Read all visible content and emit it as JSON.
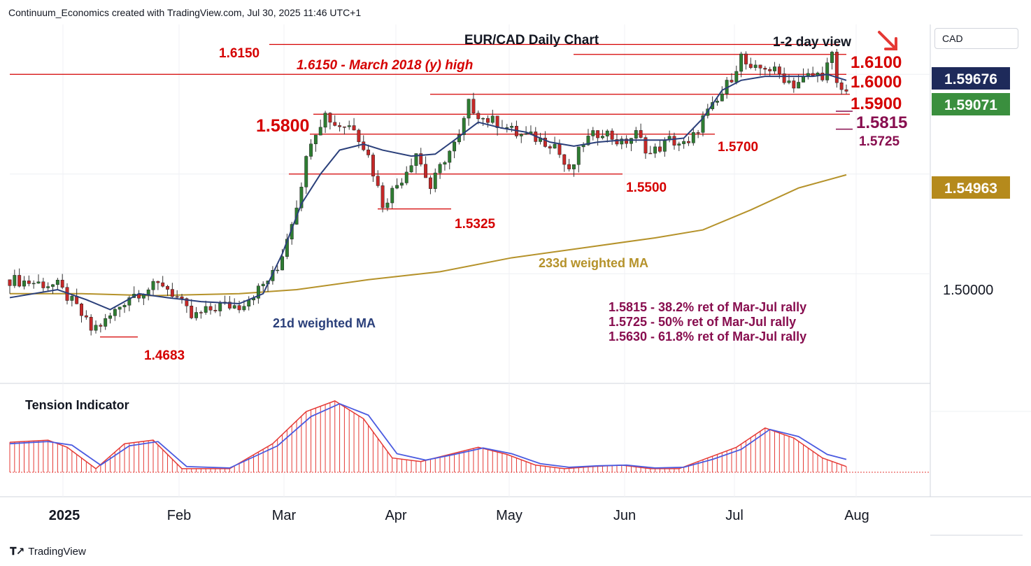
{
  "header": {
    "attribution": "Continuum_Economics created with TradingView.com, Jul 30, 2025 11:46 UTC+1",
    "currency": "CAD",
    "brand": "TradingView"
  },
  "colors": {
    "up": "#2e7d32",
    "down": "#c62828",
    "ma21": "#2a3f7a",
    "ma233": "#b5922a",
    "level": "#d50000",
    "retrace": "#880e4f",
    "tension_hist": "#e53935",
    "tension_line": "#4a5ae0",
    "tension_red": "#e53935"
  },
  "chart_data": {
    "type": "candlestick",
    "title": "EUR/CAD Daily Chart",
    "subtitle": "1-2 day view",
    "x_ticks": [
      "2025",
      "Feb",
      "Mar",
      "Apr",
      "May",
      "Jun",
      "Jul",
      "Aug"
    ],
    "y_ticks": [
      "1.50000"
    ],
    "ylim": [
      1.445,
      1.625
    ],
    "price_tags": [
      {
        "label": "1.59676",
        "value": 1.59676,
        "style": "navy"
      },
      {
        "label": "1.59071",
        "value": 1.59071,
        "style": "green"
      },
      {
        "label": "1.54963",
        "value": 1.54963,
        "style": "gold"
      }
    ],
    "levels": [
      {
        "label": "1.6150",
        "value": 1.615,
        "label_side": "left",
        "big": false
      },
      {
        "label": "1.6100",
        "value": 1.61,
        "label_side": "right",
        "big": true
      },
      {
        "label": "1.6000",
        "value": 1.6,
        "label_side": "right",
        "big": true
      },
      {
        "label": "1.5900",
        "value": 1.59,
        "label_side": "right",
        "big": true
      },
      {
        "label": "1.5800",
        "value": 1.58,
        "label_side": "left",
        "big": true
      },
      {
        "label": "1.5700",
        "value": 1.57,
        "label_side": "right",
        "big": false
      },
      {
        "label": "1.5500",
        "value": 1.55,
        "label_side": "right",
        "big": false
      },
      {
        "label": "1.5325",
        "value": 1.5325,
        "label_side": "right",
        "big": false
      },
      {
        "label": "1.4683",
        "value": 1.4683,
        "label_side": "right",
        "big": false
      }
    ],
    "retrace_marks": [
      {
        "label": "1.5815",
        "value": 1.5815,
        "big": true
      },
      {
        "label": "1.5725",
        "value": 1.5725,
        "big": false
      }
    ],
    "annotations": {
      "march_high": "1.6150 - March 2018 (y) high",
      "ma233_label": "233d weighted MA",
      "ma21_label": "21d weighted MA",
      "retracements": [
        "1.5815 - 38.2% ret of Mar-Jul rally",
        "1.5725 - 50% ret of Mar-Jul rally",
        "1.5630 - 61.8% ret of Mar-Jul rally"
      ],
      "tension_label": "Tension Indicator"
    },
    "close_path": [
      [
        0,
        1.497
      ],
      [
        10,
        1.494
      ],
      [
        14,
        1.483
      ],
      [
        17,
        1.472
      ],
      [
        20,
        1.476
      ],
      [
        25,
        1.489
      ],
      [
        32,
        1.495
      ],
      [
        35,
        1.488
      ],
      [
        38,
        1.478
      ],
      [
        44,
        1.484
      ],
      [
        48,
        1.484
      ],
      [
        52,
        1.492
      ],
      [
        56,
        1.502
      ],
      [
        60,
        1.535
      ],
      [
        63,
        1.568
      ],
      [
        66,
        1.58
      ],
      [
        68,
        1.575
      ],
      [
        72,
        1.574
      ],
      [
        75,
        1.559
      ],
      [
        78,
        1.535
      ],
      [
        82,
        1.548
      ],
      [
        85,
        1.561
      ],
      [
        88,
        1.543
      ],
      [
        91,
        1.558
      ],
      [
        94,
        1.568
      ],
      [
        96,
        1.585
      ],
      [
        99,
        1.578
      ],
      [
        103,
        1.575
      ],
      [
        106,
        1.57
      ],
      [
        110,
        1.568
      ],
      [
        114,
        1.565
      ],
      [
        117,
        1.55
      ],
      [
        120,
        1.566
      ],
      [
        124,
        1.572
      ],
      [
        128,
        1.565
      ],
      [
        131,
        1.57
      ],
      [
        134,
        1.56
      ],
      [
        138,
        1.567
      ],
      [
        142,
        1.564
      ],
      [
        145,
        1.578
      ],
      [
        148,
        1.586
      ],
      [
        151,
        1.599
      ],
      [
        153,
        1.609
      ],
      [
        155,
        1.601
      ],
      [
        158,
        1.604
      ],
      [
        161,
        1.6
      ],
      [
        164,
        1.595
      ],
      [
        167,
        1.599
      ],
      [
        170,
        1.6
      ],
      [
        172,
        1.609
      ],
      [
        173,
        1.594
      ],
      [
        175,
        1.5907
      ]
    ],
    "ma21": [
      [
        0,
        1.488
      ],
      [
        10,
        1.492
      ],
      [
        16,
        1.487
      ],
      [
        21,
        1.482
      ],
      [
        27,
        1.49
      ],
      [
        33,
        1.488
      ],
      [
        40,
        1.486
      ],
      [
        48,
        1.485
      ],
      [
        53,
        1.49
      ],
      [
        57,
        1.51
      ],
      [
        61,
        1.535
      ],
      [
        65,
        1.55
      ],
      [
        69,
        1.562
      ],
      [
        74,
        1.565
      ],
      [
        78,
        1.562
      ],
      [
        84,
        1.559
      ],
      [
        89,
        1.56
      ],
      [
        93,
        1.567
      ],
      [
        98,
        1.576
      ],
      [
        103,
        1.573
      ],
      [
        108,
        1.571
      ],
      [
        113,
        1.566
      ],
      [
        118,
        1.564
      ],
      [
        123,
        1.566
      ],
      [
        128,
        1.567
      ],
      [
        133,
        1.567
      ],
      [
        137,
        1.567
      ],
      [
        141,
        1.568
      ],
      [
        145,
        1.578
      ],
      [
        149,
        1.592
      ],
      [
        153,
        1.597
      ],
      [
        158,
        1.599
      ],
      [
        163,
        1.599
      ],
      [
        168,
        1.599
      ],
      [
        171,
        1.6
      ],
      [
        175,
        1.597
      ]
    ],
    "ma233": [
      [
        0,
        1.49
      ],
      [
        15,
        1.49
      ],
      [
        30,
        1.489
      ],
      [
        48,
        1.49
      ],
      [
        60,
        1.492
      ],
      [
        75,
        1.497
      ],
      [
        90,
        1.501
      ],
      [
        105,
        1.508
      ],
      [
        120,
        1.513
      ],
      [
        135,
        1.518
      ],
      [
        145,
        1.522
      ],
      [
        155,
        1.532
      ],
      [
        165,
        1.543
      ],
      [
        175,
        1.5496
      ]
    ],
    "tension": [
      [
        0,
        0.42
      ],
      [
        8,
        0.45
      ],
      [
        12,
        0.35
      ],
      [
        18,
        0.05
      ],
      [
        24,
        0.4
      ],
      [
        30,
        0.45
      ],
      [
        36,
        0.05
      ],
      [
        46,
        0.05
      ],
      [
        55,
        0.4
      ],
      [
        62,
        0.85
      ],
      [
        68,
        1.0
      ],
      [
        74,
        0.75
      ],
      [
        80,
        0.2
      ],
      [
        86,
        0.15
      ],
      [
        92,
        0.25
      ],
      [
        98,
        0.35
      ],
      [
        104,
        0.25
      ],
      [
        110,
        0.1
      ],
      [
        116,
        0.05
      ],
      [
        122,
        0.08
      ],
      [
        128,
        0.1
      ],
      [
        134,
        0.05
      ],
      [
        140,
        0.05
      ],
      [
        146,
        0.2
      ],
      [
        152,
        0.35
      ],
      [
        158,
        0.62
      ],
      [
        164,
        0.48
      ],
      [
        170,
        0.2
      ],
      [
        175,
        0.08
      ]
    ],
    "tension_line": [
      [
        0,
        0.4
      ],
      [
        8,
        0.43
      ],
      [
        13,
        0.38
      ],
      [
        19,
        0.1
      ],
      [
        25,
        0.37
      ],
      [
        31,
        0.43
      ],
      [
        37,
        0.08
      ],
      [
        46,
        0.06
      ],
      [
        56,
        0.37
      ],
      [
        63,
        0.78
      ],
      [
        69,
        0.96
      ],
      [
        75,
        0.8
      ],
      [
        81,
        0.26
      ],
      [
        87,
        0.17
      ],
      [
        93,
        0.25
      ],
      [
        99,
        0.34
      ],
      [
        105,
        0.26
      ],
      [
        111,
        0.12
      ],
      [
        117,
        0.07
      ],
      [
        123,
        0.09
      ],
      [
        129,
        0.1
      ],
      [
        135,
        0.06
      ],
      [
        141,
        0.07
      ],
      [
        147,
        0.18
      ],
      [
        153,
        0.32
      ],
      [
        159,
        0.6
      ],
      [
        165,
        0.5
      ],
      [
        171,
        0.25
      ],
      [
        175,
        0.18
      ]
    ]
  }
}
